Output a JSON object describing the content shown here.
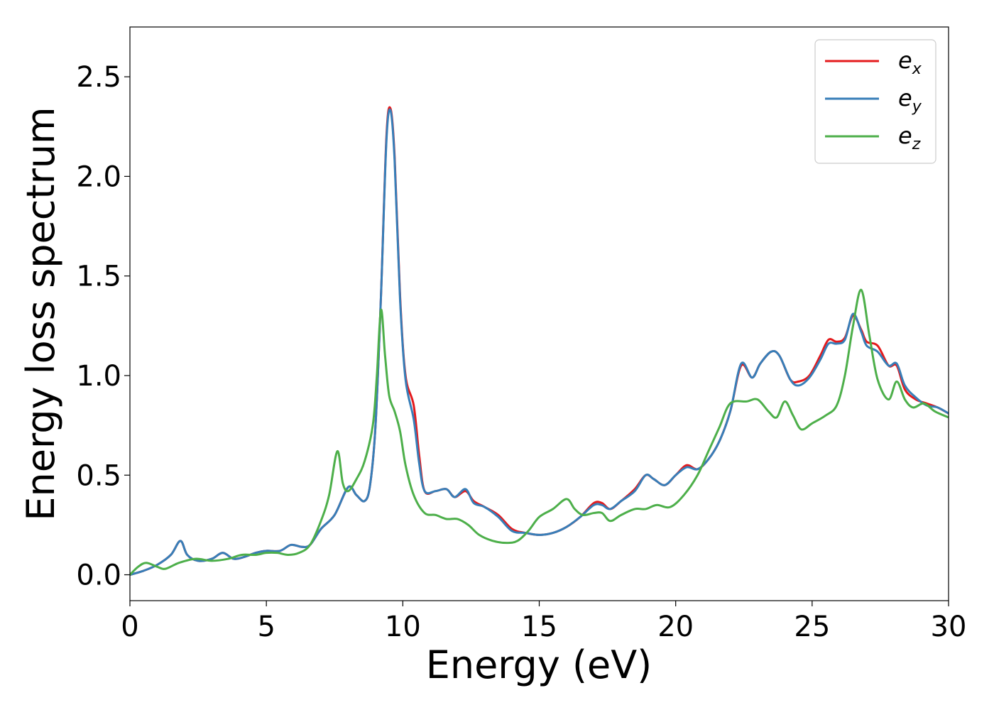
{
  "chart_data": {
    "type": "line",
    "xlabel": "Energy (eV)",
    "ylabel": "Energy loss spectrum",
    "xlim": [
      0,
      30
    ],
    "ylim": [
      -0.13,
      2.75
    ],
    "xticks": [
      0,
      5,
      10,
      15,
      20,
      25,
      30
    ],
    "xtick_labels": [
      "0",
      "5",
      "10",
      "15",
      "20",
      "25",
      "30"
    ],
    "yticks": [
      0.0,
      0.5,
      1.0,
      1.5,
      2.0,
      2.5
    ],
    "ytick_labels": [
      "0.0",
      "0.5",
      "1.0",
      "1.5",
      "2.0",
      "2.5"
    ],
    "grid": false,
    "legend_position": "top-right",
    "series": [
      {
        "name": "e_x",
        "label_base": "e",
        "label_sub": "x",
        "color": "#e41a1c",
        "points": [
          [
            0,
            0
          ],
          [
            0.5,
            0.02
          ],
          [
            1.0,
            0.05
          ],
          [
            1.5,
            0.1
          ],
          [
            1.85,
            0.17
          ],
          [
            2.1,
            0.1
          ],
          [
            2.5,
            0.07
          ],
          [
            3.0,
            0.08
          ],
          [
            3.4,
            0.11
          ],
          [
            3.8,
            0.08
          ],
          [
            4.2,
            0.09
          ],
          [
            4.6,
            0.11
          ],
          [
            5.0,
            0.12
          ],
          [
            5.5,
            0.12
          ],
          [
            5.9,
            0.15
          ],
          [
            6.3,
            0.14
          ],
          [
            6.6,
            0.15
          ],
          [
            7.0,
            0.23
          ],
          [
            7.5,
            0.3
          ],
          [
            8.0,
            0.44
          ],
          [
            8.3,
            0.4
          ],
          [
            8.6,
            0.37
          ],
          [
            8.8,
            0.45
          ],
          [
            9.0,
            0.75
          ],
          [
            9.2,
            1.4
          ],
          [
            9.4,
            2.2
          ],
          [
            9.55,
            2.34
          ],
          [
            9.7,
            2.1
          ],
          [
            9.9,
            1.4
          ],
          [
            10.1,
            1.0
          ],
          [
            10.4,
            0.85
          ],
          [
            10.6,
            0.6
          ],
          [
            10.8,
            0.42
          ],
          [
            11.2,
            0.42
          ],
          [
            11.6,
            0.43
          ],
          [
            11.9,
            0.39
          ],
          [
            12.3,
            0.42
          ],
          [
            12.6,
            0.37
          ],
          [
            13.0,
            0.34
          ],
          [
            13.5,
            0.3
          ],
          [
            14.0,
            0.23
          ],
          [
            14.5,
            0.21
          ],
          [
            15.0,
            0.2
          ],
          [
            15.5,
            0.21
          ],
          [
            16.0,
            0.24
          ],
          [
            16.5,
            0.29
          ],
          [
            17.0,
            0.36
          ],
          [
            17.3,
            0.36
          ],
          [
            17.6,
            0.33
          ],
          [
            18.0,
            0.37
          ],
          [
            18.5,
            0.43
          ],
          [
            18.9,
            0.5
          ],
          [
            19.2,
            0.48
          ],
          [
            19.6,
            0.45
          ],
          [
            20.0,
            0.5
          ],
          [
            20.4,
            0.55
          ],
          [
            20.8,
            0.53
          ],
          [
            21.2,
            0.58
          ],
          [
            21.6,
            0.67
          ],
          [
            22.0,
            0.82
          ],
          [
            22.4,
            1.05
          ],
          [
            22.8,
            0.99
          ],
          [
            23.1,
            1.06
          ],
          [
            23.5,
            1.12
          ],
          [
            23.8,
            1.1
          ],
          [
            24.2,
            0.98
          ],
          [
            24.5,
            0.97
          ],
          [
            24.9,
            1.0
          ],
          [
            25.3,
            1.1
          ],
          [
            25.6,
            1.18
          ],
          [
            25.9,
            1.17
          ],
          [
            26.2,
            1.19
          ],
          [
            26.5,
            1.3
          ],
          [
            26.8,
            1.23
          ],
          [
            27.0,
            1.17
          ],
          [
            27.4,
            1.15
          ],
          [
            27.8,
            1.05
          ],
          [
            28.1,
            1.05
          ],
          [
            28.4,
            0.93
          ],
          [
            28.8,
            0.88
          ],
          [
            29.2,
            0.86
          ],
          [
            29.6,
            0.84
          ],
          [
            30.0,
            0.81
          ]
        ]
      },
      {
        "name": "e_y",
        "label_base": "e",
        "label_sub": "y",
        "color": "#377eb8",
        "points": [
          [
            0,
            0
          ],
          [
            0.5,
            0.02
          ],
          [
            1.0,
            0.05
          ],
          [
            1.5,
            0.1
          ],
          [
            1.85,
            0.17
          ],
          [
            2.1,
            0.1
          ],
          [
            2.5,
            0.07
          ],
          [
            3.0,
            0.08
          ],
          [
            3.4,
            0.11
          ],
          [
            3.8,
            0.08
          ],
          [
            4.2,
            0.09
          ],
          [
            4.6,
            0.11
          ],
          [
            5.0,
            0.12
          ],
          [
            5.5,
            0.12
          ],
          [
            5.9,
            0.15
          ],
          [
            6.3,
            0.14
          ],
          [
            6.6,
            0.15
          ],
          [
            7.0,
            0.23
          ],
          [
            7.5,
            0.3
          ],
          [
            8.0,
            0.44
          ],
          [
            8.3,
            0.4
          ],
          [
            8.6,
            0.37
          ],
          [
            8.8,
            0.45
          ],
          [
            9.0,
            0.75
          ],
          [
            9.2,
            1.4
          ],
          [
            9.4,
            2.18
          ],
          [
            9.55,
            2.33
          ],
          [
            9.7,
            2.08
          ],
          [
            9.9,
            1.38
          ],
          [
            10.1,
            0.98
          ],
          [
            10.4,
            0.78
          ],
          [
            10.6,
            0.56
          ],
          [
            10.8,
            0.42
          ],
          [
            11.2,
            0.42
          ],
          [
            11.6,
            0.43
          ],
          [
            11.9,
            0.39
          ],
          [
            12.3,
            0.43
          ],
          [
            12.6,
            0.36
          ],
          [
            13.0,
            0.34
          ],
          [
            13.5,
            0.29
          ],
          [
            14.0,
            0.22
          ],
          [
            14.5,
            0.21
          ],
          [
            15.0,
            0.2
          ],
          [
            15.5,
            0.21
          ],
          [
            16.0,
            0.24
          ],
          [
            16.5,
            0.29
          ],
          [
            17.0,
            0.35
          ],
          [
            17.3,
            0.35
          ],
          [
            17.6,
            0.33
          ],
          [
            18.0,
            0.37
          ],
          [
            18.5,
            0.42
          ],
          [
            18.9,
            0.5
          ],
          [
            19.2,
            0.48
          ],
          [
            19.6,
            0.45
          ],
          [
            20.0,
            0.5
          ],
          [
            20.4,
            0.54
          ],
          [
            20.8,
            0.53
          ],
          [
            21.2,
            0.58
          ],
          [
            21.6,
            0.67
          ],
          [
            22.0,
            0.82
          ],
          [
            22.4,
            1.06
          ],
          [
            22.8,
            0.99
          ],
          [
            23.1,
            1.06
          ],
          [
            23.5,
            1.12
          ],
          [
            23.8,
            1.1
          ],
          [
            24.2,
            0.98
          ],
          [
            24.5,
            0.95
          ],
          [
            24.9,
            0.99
          ],
          [
            25.3,
            1.08
          ],
          [
            25.6,
            1.16
          ],
          [
            25.9,
            1.16
          ],
          [
            26.2,
            1.18
          ],
          [
            26.5,
            1.31
          ],
          [
            26.8,
            1.22
          ],
          [
            27.0,
            1.15
          ],
          [
            27.4,
            1.12
          ],
          [
            27.8,
            1.05
          ],
          [
            28.1,
            1.06
          ],
          [
            28.4,
            0.95
          ],
          [
            28.8,
            0.89
          ],
          [
            29.2,
            0.85
          ],
          [
            29.6,
            0.84
          ],
          [
            30.0,
            0.81
          ]
        ]
      },
      {
        "name": "e_z",
        "label_base": "e",
        "label_sub": "z",
        "color": "#4daf4a",
        "points": [
          [
            0,
            0
          ],
          [
            0.3,
            0.04
          ],
          [
            0.6,
            0.06
          ],
          [
            1.0,
            0.04
          ],
          [
            1.3,
            0.03
          ],
          [
            1.8,
            0.06
          ],
          [
            2.4,
            0.08
          ],
          [
            3.0,
            0.07
          ],
          [
            3.6,
            0.08
          ],
          [
            4.1,
            0.1
          ],
          [
            4.6,
            0.1
          ],
          [
            5.0,
            0.11
          ],
          [
            5.4,
            0.11
          ],
          [
            5.8,
            0.1
          ],
          [
            6.2,
            0.11
          ],
          [
            6.6,
            0.15
          ],
          [
            7.0,
            0.27
          ],
          [
            7.3,
            0.4
          ],
          [
            7.6,
            0.62
          ],
          [
            7.8,
            0.46
          ],
          [
            8.0,
            0.42
          ],
          [
            8.3,
            0.48
          ],
          [
            8.6,
            0.57
          ],
          [
            8.9,
            0.75
          ],
          [
            9.05,
            1.0
          ],
          [
            9.2,
            1.33
          ],
          [
            9.35,
            1.1
          ],
          [
            9.5,
            0.9
          ],
          [
            9.7,
            0.82
          ],
          [
            9.9,
            0.72
          ],
          [
            10.1,
            0.55
          ],
          [
            10.4,
            0.4
          ],
          [
            10.8,
            0.31
          ],
          [
            11.2,
            0.3
          ],
          [
            11.6,
            0.28
          ],
          [
            12.0,
            0.28
          ],
          [
            12.4,
            0.25
          ],
          [
            12.8,
            0.2
          ],
          [
            13.3,
            0.17
          ],
          [
            13.8,
            0.16
          ],
          [
            14.2,
            0.17
          ],
          [
            14.6,
            0.22
          ],
          [
            15.0,
            0.29
          ],
          [
            15.5,
            0.33
          ],
          [
            16.0,
            0.38
          ],
          [
            16.3,
            0.33
          ],
          [
            16.6,
            0.3
          ],
          [
            17.0,
            0.31
          ],
          [
            17.3,
            0.31
          ],
          [
            17.6,
            0.27
          ],
          [
            18.0,
            0.3
          ],
          [
            18.5,
            0.33
          ],
          [
            18.9,
            0.33
          ],
          [
            19.3,
            0.35
          ],
          [
            19.8,
            0.34
          ],
          [
            20.3,
            0.4
          ],
          [
            20.8,
            0.5
          ],
          [
            21.2,
            0.62
          ],
          [
            21.6,
            0.74
          ],
          [
            22.0,
            0.86
          ],
          [
            22.6,
            0.87
          ],
          [
            23.0,
            0.88
          ],
          [
            23.4,
            0.82
          ],
          [
            23.7,
            0.79
          ],
          [
            24.0,
            0.87
          ],
          [
            24.3,
            0.8
          ],
          [
            24.6,
            0.73
          ],
          [
            25.0,
            0.76
          ],
          [
            25.5,
            0.8
          ],
          [
            25.9,
            0.85
          ],
          [
            26.2,
            1.0
          ],
          [
            26.5,
            1.25
          ],
          [
            26.8,
            1.43
          ],
          [
            27.1,
            1.2
          ],
          [
            27.4,
            0.98
          ],
          [
            27.8,
            0.88
          ],
          [
            28.1,
            0.97
          ],
          [
            28.4,
            0.88
          ],
          [
            28.7,
            0.84
          ],
          [
            29.1,
            0.86
          ],
          [
            29.5,
            0.82
          ],
          [
            30.0,
            0.79
          ]
        ]
      }
    ]
  }
}
